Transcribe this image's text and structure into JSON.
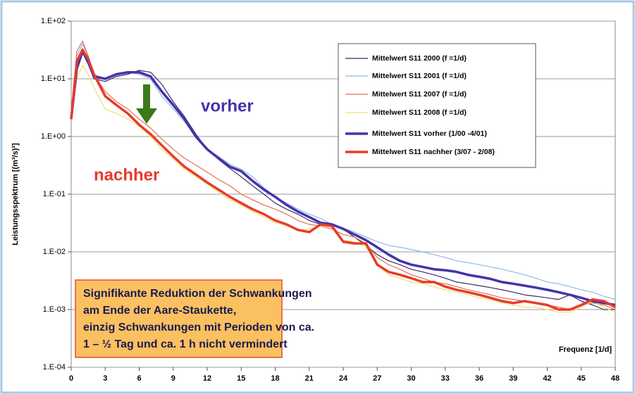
{
  "chart_data": {
    "type": "line",
    "ylabel": "Leistungsspektrum [(m³/s)²]",
    "xlabel": "Frequenz [1/d]",
    "log_y": true,
    "grid": true,
    "legend": "upper right",
    "xlim": [
      0,
      48
    ],
    "xticks": [
      0,
      3,
      6,
      9,
      12,
      15,
      18,
      21,
      24,
      27,
      30,
      33,
      36,
      39,
      42,
      45,
      48
    ],
    "ylim": [
      0.0001,
      100
    ],
    "yticks": [
      {
        "value": 0.0001,
        "label": "1.E-04"
      },
      {
        "value": 0.001,
        "label": "1.E-03"
      },
      {
        "value": 0.01,
        "label": "1.E-02"
      },
      {
        "value": 0.1,
        "label": "1.E-01"
      },
      {
        "value": 1,
        "label": "1.E+00"
      },
      {
        "value": 10,
        "label": "1.E+01"
      },
      {
        "value": 100,
        "label": "1.E+02"
      }
    ],
    "x": [
      0,
      0.5,
      1,
      1.5,
      2,
      3,
      4,
      5,
      6,
      7,
      8,
      9,
      10,
      11,
      12,
      13,
      14,
      15,
      16,
      17,
      18,
      19,
      20,
      21,
      22,
      23,
      24,
      25,
      26,
      27,
      28,
      29,
      30,
      31,
      32,
      33,
      34,
      35,
      36,
      37,
      38,
      39,
      40,
      41,
      42,
      43,
      44,
      45,
      46,
      47,
      48
    ],
    "series": [
      {
        "name": "Mittelwert S11 2000 (f =1/d)",
        "color": "#3a2a6a",
        "width": 1.2,
        "values": [
          2,
          18,
          28,
          18,
          10,
          9,
          11,
          12,
          14,
          13,
          8,
          4,
          2.2,
          1.1,
          0.6,
          0.4,
          0.28,
          0.2,
          0.14,
          0.1,
          0.07,
          0.055,
          0.045,
          0.035,
          0.03,
          0.03,
          0.025,
          0.018,
          0.013,
          0.009,
          0.007,
          0.006,
          0.005,
          0.0045,
          0.004,
          0.0035,
          0.003,
          0.0028,
          0.0026,
          0.0024,
          0.0022,
          0.002,
          0.0018,
          0.0017,
          0.0016,
          0.0015,
          0.0018,
          0.0014,
          0.0012,
          0.001,
          0.001
        ]
      },
      {
        "name": "Mittelwert S11 2001 (f =1/d)",
        "color": "#90b8e8",
        "width": 1.2,
        "values": [
          2,
          25,
          40,
          25,
          12,
          10,
          12,
          13,
          12,
          10,
          5,
          3,
          1.8,
          1,
          0.6,
          0.45,
          0.33,
          0.27,
          0.2,
          0.13,
          0.09,
          0.07,
          0.055,
          0.045,
          0.038,
          0.03,
          0.026,
          0.022,
          0.018,
          0.015,
          0.013,
          0.012,
          0.011,
          0.01,
          0.009,
          0.008,
          0.007,
          0.0065,
          0.006,
          0.0055,
          0.005,
          0.0045,
          0.004,
          0.0035,
          0.003,
          0.0028,
          0.0025,
          0.0022,
          0.002,
          0.0017,
          0.0015
        ]
      },
      {
        "name": "Mittelwert S11 2007 (f =1/d)",
        "color": "#e07050",
        "width": 1.2,
        "values": [
          2,
          30,
          45,
          25,
          12,
          6,
          4,
          3,
          2,
          1.4,
          0.9,
          0.6,
          0.42,
          0.32,
          0.24,
          0.18,
          0.14,
          0.1,
          0.08,
          0.065,
          0.055,
          0.045,
          0.035,
          0.03,
          0.028,
          0.025,
          0.02,
          0.018,
          0.014,
          0.008,
          0.006,
          0.005,
          0.004,
          0.0035,
          0.003,
          0.0028,
          0.0025,
          0.0022,
          0.002,
          0.0018,
          0.0016,
          0.0015,
          0.0014,
          0.0013,
          0.0012,
          0.0011,
          0.001,
          0.0012,
          0.0013,
          0.0012,
          0.001
        ]
      },
      {
        "name": "Mittelwert S11 2008 (f =1/d)",
        "color": "#f0e070",
        "width": 1.2,
        "values": [
          2,
          10,
          17,
          12,
          7,
          3,
          2.5,
          2,
          1.5,
          1,
          0.6,
          0.4,
          0.27,
          0.2,
          0.15,
          0.11,
          0.08,
          0.065,
          0.05,
          0.04,
          0.032,
          0.028,
          0.024,
          0.025,
          0.028,
          0.03,
          0.016,
          0.015,
          0.012,
          0.006,
          0.004,
          0.0035,
          0.003,
          0.0028,
          0.0025,
          0.0022,
          0.002,
          0.0018,
          0.0016,
          0.0015,
          0.0013,
          0.0012,
          0.0011,
          0.0011,
          0.001,
          0.0009,
          0.0009,
          0.0011,
          0.0014,
          0.0011,
          0.0009
        ]
      },
      {
        "name": "Mittelwert S11 vorher (1/00 -4/01)",
        "color": "#4433aa",
        "width": 3.5,
        "values": [
          2,
          15,
          30,
          20,
          11,
          10,
          12,
          13,
          13,
          11,
          6,
          3.5,
          2,
          1,
          0.6,
          0.42,
          0.3,
          0.25,
          0.17,
          0.12,
          0.09,
          0.065,
          0.05,
          0.04,
          0.032,
          0.03,
          0.025,
          0.02,
          0.016,
          0.012,
          0.009,
          0.007,
          0.006,
          0.0055,
          0.005,
          0.0048,
          0.0045,
          0.004,
          0.0037,
          0.0034,
          0.003,
          0.0028,
          0.0026,
          0.0024,
          0.0022,
          0.002,
          0.0018,
          0.0016,
          0.0014,
          0.0013,
          0.0012
        ]
      },
      {
        "name": "Mittelwert S11 nachher (3/07 - 2/08)",
        "color": "#e83a2a",
        "width": 3.5,
        "values": [
          2,
          20,
          32,
          22,
          12,
          5,
          3.5,
          2.5,
          1.6,
          1.1,
          0.7,
          0.45,
          0.3,
          0.22,
          0.16,
          0.12,
          0.09,
          0.07,
          0.055,
          0.045,
          0.035,
          0.03,
          0.024,
          0.022,
          0.03,
          0.028,
          0.015,
          0.014,
          0.014,
          0.006,
          0.0045,
          0.004,
          0.0035,
          0.003,
          0.003,
          0.0025,
          0.0022,
          0.002,
          0.0018,
          0.0016,
          0.0014,
          0.0013,
          0.0014,
          0.0013,
          0.0012,
          0.001,
          0.001,
          0.0012,
          0.0015,
          0.0014,
          0.0011
        ]
      }
    ],
    "annotations": [
      "vorher",
      "nachher"
    ],
    "note": [
      "Signifikante Reduktion der Schwankungen",
      "am Ende der Aare-Staukette,",
      "einzig Schwankungen mit Perioden von ca.",
      "1 – ½ Tag und ca. 1 h nicht vermindert"
    ]
  }
}
